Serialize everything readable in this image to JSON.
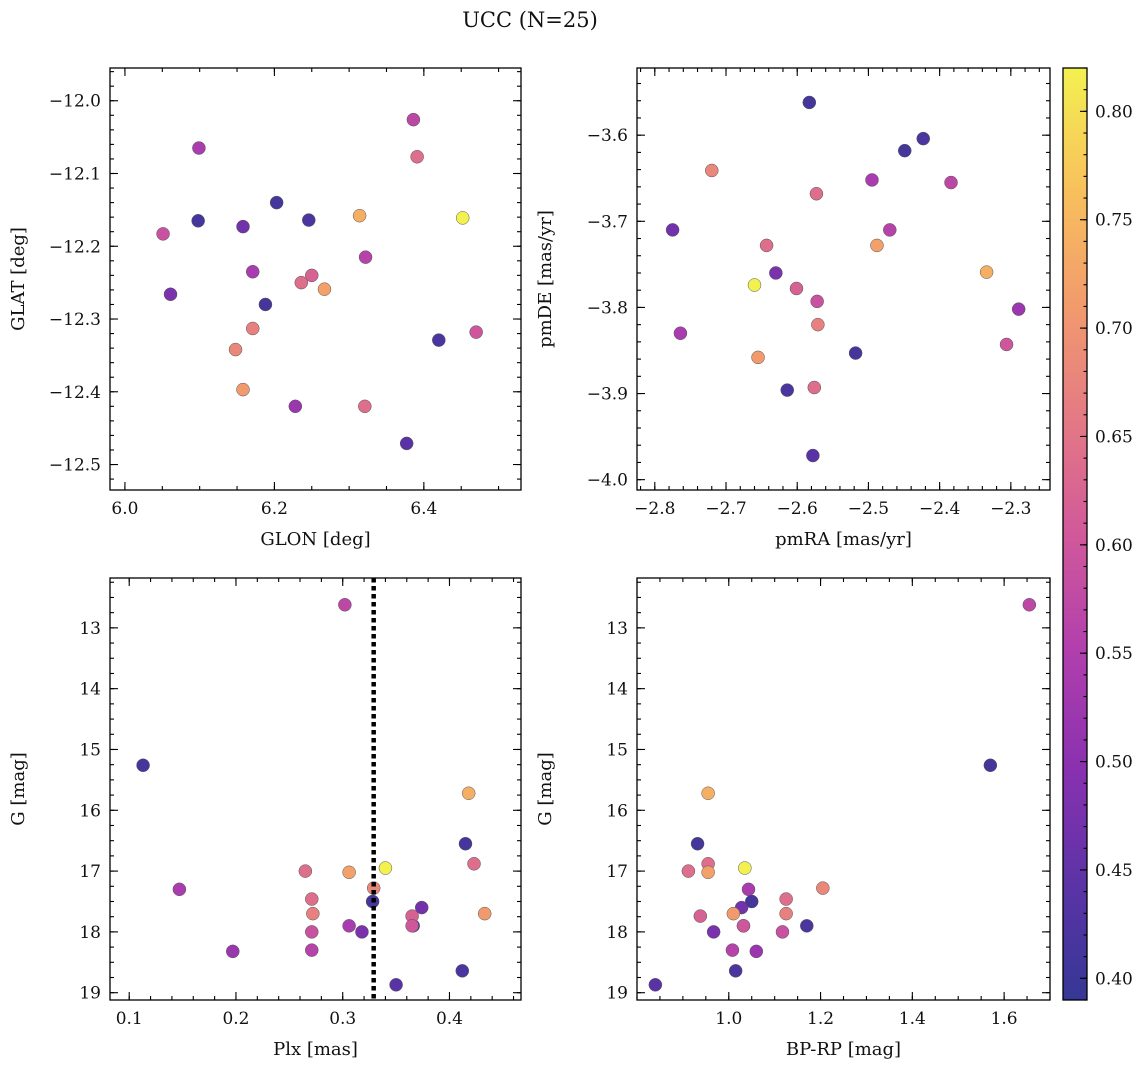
{
  "title": "UCC (N=25)",
  "colormap": {
    "name": "plasma",
    "stops": [
      "#353795",
      "#5c33a6",
      "#8a31b0",
      "#b13fad",
      "#d1599a",
      "#e47a84",
      "#f29c6c",
      "#f8c25c",
      "#f3f150"
    ],
    "range": [
      0.39,
      0.82
    ],
    "ticks": [
      0.4,
      0.45,
      0.5,
      0.55,
      0.6,
      0.65,
      0.7,
      0.75,
      0.8
    ],
    "tick_labels": [
      "0.40",
      "0.45",
      "0.50",
      "0.55",
      "0.60",
      "0.65",
      "0.70",
      "0.75",
      "0.80"
    ]
  },
  "stars": [
    {
      "glon": 6.386,
      "glat": -12.026,
      "pmra": -2.384,
      "pmde": -3.655,
      "plx": 0.302,
      "g": 12.62,
      "bprp": 1.655,
      "c": 0.57
    },
    {
      "glon": 6.099,
      "glat": -12.065,
      "pmra": -2.764,
      "pmde": -3.83,
      "plx": 0.147,
      "g": 17.3,
      "bprp": 1.043,
      "c": 0.54
    },
    {
      "glon": 6.391,
      "glat": -12.077,
      "pmra": -2.573,
      "pmde": -3.668,
      "plx": 0.423,
      "g": 16.88,
      "bprp": 0.955,
      "c": 0.64
    },
    {
      "glon": 6.203,
      "glat": -12.14,
      "pmra": -2.449,
      "pmde": -3.618,
      "plx": 0.415,
      "g": 16.55,
      "bprp": 0.932,
      "c": 0.41
    },
    {
      "glon": 6.314,
      "glat": -12.158,
      "pmra": -2.334,
      "pmde": -3.759,
      "plx": 0.418,
      "g": 15.72,
      "bprp": 0.955,
      "c": 0.74
    },
    {
      "glon": 6.452,
      "glat": -12.161,
      "pmra": -2.66,
      "pmde": -3.774,
      "plx": 0.34,
      "g": 16.95,
      "bprp": 1.035,
      "c": 0.82
    },
    {
      "glon": 6.098,
      "glat": -12.165,
      "pmra": -2.583,
      "pmde": -3.562,
      "plx": 0.113,
      "g": 15.26,
      "bprp": 1.57,
      "c": 0.41
    },
    {
      "glon": 6.246,
      "glat": -12.164,
      "pmra": -2.423,
      "pmde": -3.604,
      "plx": 0.366,
      "g": 17.9,
      "bprp": 1.17,
      "c": 0.42
    },
    {
      "glon": 6.158,
      "glat": -12.173,
      "pmra": -2.775,
      "pmde": -3.71,
      "plx": 0.374,
      "g": 17.6,
      "bprp": 1.028,
      "c": 0.47
    },
    {
      "glon": 6.051,
      "glat": -12.183,
      "pmra": -2.572,
      "pmde": -3.793,
      "plx": 0.271,
      "g": 18.0,
      "bprp": 1.117,
      "c": 0.59
    },
    {
      "glon": 6.322,
      "glat": -12.215,
      "pmra": -2.47,
      "pmde": -3.71,
      "plx": 0.271,
      "g": 18.3,
      "bprp": 1.008,
      "c": 0.56
    },
    {
      "glon": 6.171,
      "glat": -12.235,
      "pmra": -2.495,
      "pmde": -3.652,
      "plx": 0.306,
      "g": 17.9,
      "bprp": 1.032,
      "c": 0.54
    },
    {
      "glon": 6.25,
      "glat": -12.24,
      "pmra": -2.601,
      "pmde": -3.778,
      "plx": 0.365,
      "g": 17.74,
      "bprp": 0.938,
      "c": 0.62
    },
    {
      "glon": 6.236,
      "glat": -12.25,
      "pmra": -2.643,
      "pmde": -3.728,
      "plx": 0.265,
      "g": 17.0,
      "bprp": 0.912,
      "c": 0.64
    },
    {
      "glon": 6.267,
      "glat": -12.259,
      "pmra": -2.488,
      "pmde": -3.728,
      "plx": 0.306,
      "g": 17.02,
      "bprp": 0.955,
      "c": 0.72
    },
    {
      "glon": 6.061,
      "glat": -12.266,
      "pmra": -2.63,
      "pmde": -3.76,
      "plx": 0.318,
      "g": 18.0,
      "bprp": 0.967,
      "c": 0.48
    },
    {
      "glon": 6.188,
      "glat": -12.28,
      "pmra": -2.518,
      "pmde": -3.853,
      "plx": 0.328,
      "g": 17.5,
      "bprp": 1.05,
      "c": 0.41
    },
    {
      "glon": 6.171,
      "glat": -12.313,
      "pmra": -2.571,
      "pmde": -3.82,
      "plx": 0.272,
      "g": 17.7,
      "bprp": 1.125,
      "c": 0.67
    },
    {
      "glon": 6.47,
      "glat": -12.318,
      "pmra": -2.306,
      "pmde": -3.843,
      "plx": 0.365,
      "g": 17.9,
      "bprp": 1.032,
      "c": 0.6
    },
    {
      "glon": 6.42,
      "glat": -12.329,
      "pmra": -2.614,
      "pmde": -3.896,
      "plx": 0.412,
      "g": 18.64,
      "bprp": 1.015,
      "c": 0.42
    },
    {
      "glon": 6.148,
      "glat": -12.342,
      "pmra": -2.72,
      "pmde": -3.641,
      "plx": 0.329,
      "g": 17.28,
      "bprp": 1.205,
      "c": 0.68
    },
    {
      "glon": 6.158,
      "glat": -12.397,
      "pmra": -2.655,
      "pmde": -3.858,
      "plx": 0.433,
      "g": 17.7,
      "bprp": 1.01,
      "c": 0.71
    },
    {
      "glon": 6.228,
      "glat": -12.42,
      "pmra": -2.289,
      "pmde": -3.802,
      "plx": 0.197,
      "g": 18.32,
      "bprp": 1.06,
      "c": 0.52
    },
    {
      "glon": 6.321,
      "glat": -12.42,
      "pmra": -2.576,
      "pmde": -3.893,
      "plx": 0.271,
      "g": 17.46,
      "bprp": 1.125,
      "c": 0.64
    },
    {
      "glon": 6.377,
      "glat": -12.471,
      "pmra": -2.578,
      "pmde": -3.972,
      "plx": 0.35,
      "g": 18.87,
      "bprp": 0.84,
      "c": 0.44
    }
  ],
  "chart_data": [
    {
      "type": "scatter",
      "panel": "top-left",
      "xlabel": "GLON [deg]",
      "ylabel": "GLAT [deg]",
      "xfield": "glon",
      "yfield": "glat",
      "xlim": [
        5.98,
        6.53
      ],
      "ylim": [
        -12.535,
        -11.955
      ],
      "y_inverted": false,
      "xticks": [
        6.0,
        6.2,
        6.4
      ],
      "xtick_labels": [
        "6.0",
        "6.2",
        "6.4"
      ],
      "yticks": [
        -12.0,
        -12.1,
        -12.2,
        -12.3,
        -12.4,
        -12.5
      ],
      "ytick_labels": [
        "−12.0",
        "−12.1",
        "−12.2",
        "−12.3",
        "−12.4",
        "−12.5"
      ]
    },
    {
      "type": "scatter",
      "panel": "top-right",
      "xlabel": "pmRA [mas/yr]",
      "ylabel": "pmDE [mas/yr]",
      "xfield": "pmra",
      "yfield": "pmde",
      "xlim": [
        -2.825,
        -2.245
      ],
      "ylim": [
        -4.012,
        -3.522
      ],
      "y_inverted": false,
      "xticks": [
        -2.8,
        -2.7,
        -2.6,
        -2.5,
        -2.4,
        -2.3
      ],
      "xtick_labels": [
        "−2.8",
        "−2.7",
        "−2.6",
        "−2.5",
        "−2.4",
        "−2.3"
      ],
      "yticks": [
        -3.6,
        -3.7,
        -3.8,
        -3.9,
        -4.0
      ],
      "ytick_labels": [
        "−3.6",
        "−3.7",
        "−3.8",
        "−3.9",
        "−4.0"
      ]
    },
    {
      "type": "scatter",
      "panel": "bottom-left",
      "xlabel": "Plx [mas]",
      "ylabel": "G [mag]",
      "xfield": "plx",
      "yfield": "g",
      "xlim": [
        0.082,
        0.467
      ],
      "ylim": [
        12.18,
        19.12
      ],
      "y_inverted": true,
      "xticks": [
        0.1,
        0.2,
        0.3,
        0.4
      ],
      "xtick_labels": [
        "0.1",
        "0.2",
        "0.3",
        "0.4"
      ],
      "yticks": [
        13,
        14,
        15,
        16,
        17,
        18,
        19
      ],
      "ytick_labels": [
        "13",
        "14",
        "15",
        "16",
        "17",
        "18",
        "19"
      ],
      "vline": 0.329
    },
    {
      "type": "scatter",
      "panel": "bottom-right",
      "xlabel": "BP-RP [mag]",
      "ylabel": "G [mag]",
      "xfield": "bprp",
      "yfield": "g",
      "xlim": [
        0.8,
        1.7
      ],
      "ylim": [
        12.18,
        19.12
      ],
      "y_inverted": true,
      "xticks": [
        1.0,
        1.2,
        1.4,
        1.6
      ],
      "xtick_labels": [
        "1.0",
        "1.2",
        "1.4",
        "1.6"
      ],
      "yticks": [
        13,
        14,
        15,
        16,
        17,
        18,
        19
      ],
      "ytick_labels": [
        "13",
        "14",
        "15",
        "16",
        "17",
        "18",
        "19"
      ]
    }
  ]
}
